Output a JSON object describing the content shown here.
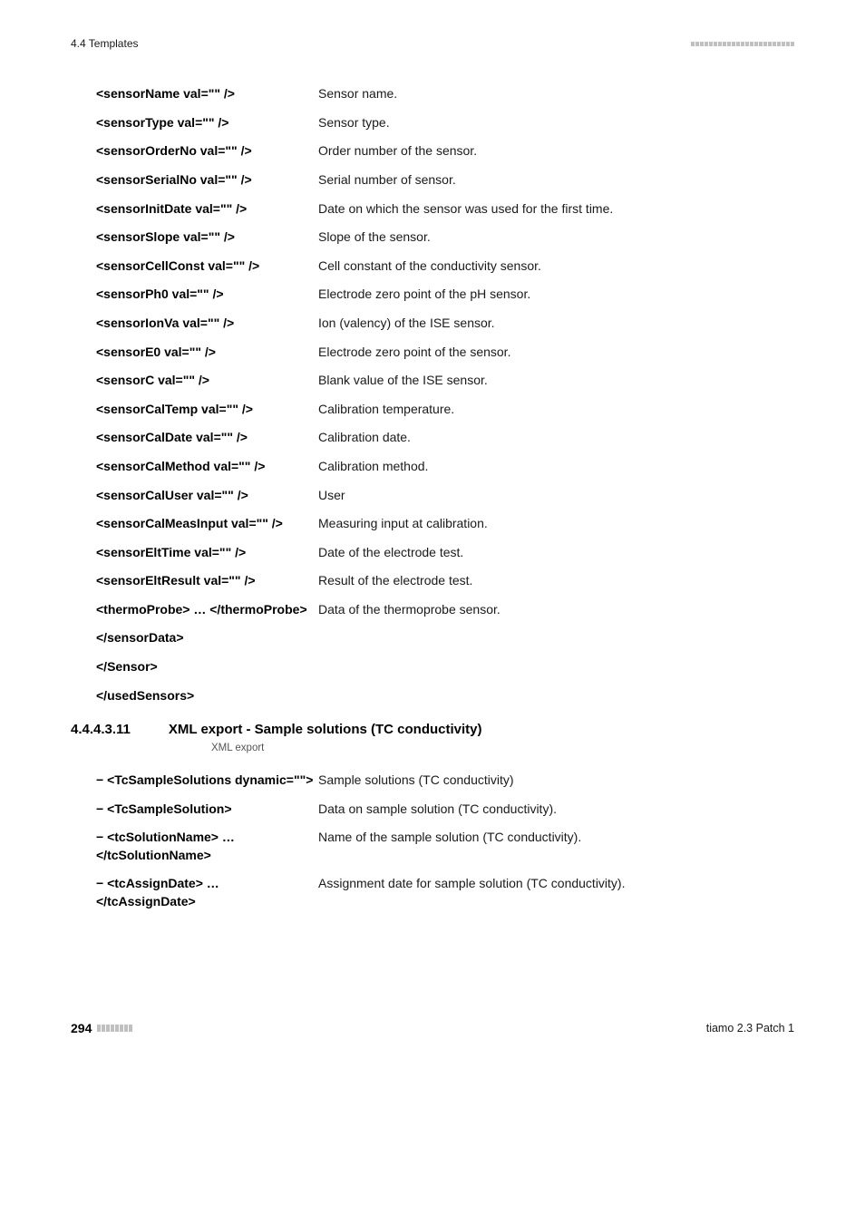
{
  "header": {
    "left": "4.4 Templates"
  },
  "defs": [
    {
      "term": "<sensorName val=\"\" />",
      "desc": "Sensor name."
    },
    {
      "term": "<sensorType val=\"\" />",
      "desc": "Sensor type."
    },
    {
      "term": "<sensorOrderNo val=\"\" />",
      "desc": "Order number of the sensor."
    },
    {
      "term": "<sensorSerialNo val=\"\" />",
      "desc": "Serial number of sensor."
    },
    {
      "term": "<sensorInitDate val=\"\" />",
      "desc": "Date on which the sensor was used for the first time."
    },
    {
      "term": "<sensorSlope val=\"\" />",
      "desc": "Slope of the sensor."
    },
    {
      "term": "<sensorCellConst val=\"\" />",
      "desc": "Cell constant of the conductivity sensor."
    },
    {
      "term": "<sensorPh0 val=\"\" />",
      "desc": "Electrode zero point of the pH sensor."
    },
    {
      "term": "<sensorIonVa val=\"\" />",
      "desc": "Ion (valency) of the ISE sensor."
    },
    {
      "term": "<sensorE0 val=\"\" />",
      "desc": "Electrode zero point of the sensor."
    },
    {
      "term": "<sensorC val=\"\" />",
      "desc": "Blank value of the ISE sensor."
    },
    {
      "term": "<sensorCalTemp val=\"\" />",
      "desc": "Calibration temperature."
    },
    {
      "term": "<sensorCalDate val=\"\" />",
      "desc": "Calibration date."
    },
    {
      "term": "<sensorCalMethod val=\"\" />",
      "desc": "Calibration method."
    },
    {
      "term": "<sensorCalUser val=\"\" />",
      "desc": "User"
    },
    {
      "term": "<sensorCalMeasInput val=\"\" />",
      "desc": "Measuring input at calibration."
    },
    {
      "term": "<sensorEltTime val=\"\" />",
      "desc": "Date of the electrode test."
    },
    {
      "term": "<sensorEltResult val=\"\" />",
      "desc": "Result of the electrode test."
    },
    {
      "term": "<thermoProbe> … </thermoProbe>",
      "desc": "Data of the thermoprobe sensor."
    },
    {
      "term": "</sensorData>",
      "desc": ""
    },
    {
      "term": "</Sensor>",
      "desc": ""
    },
    {
      "term": "</usedSensors>",
      "desc": ""
    }
  ],
  "section": {
    "num": "4.4.4.3.11",
    "title": "XML export - Sample solutions (TC conductivity)",
    "caption": "XML export"
  },
  "defs2": [
    {
      "term": "− <TcSampleSolutions dynamic=\"\">",
      "desc": "Sample solutions (TC conductivity)"
    },
    {
      "term": "− <TcSampleSolution>",
      "desc": "Data on sample solution (TC conductivity)."
    },
    {
      "term": "− <tcSolutionName> … </tcSolutionName>",
      "desc": "Name of the sample solution (TC conductivity)."
    },
    {
      "term": "− <tcAssignDate> … </tcAssignDate>",
      "desc": "Assignment date for sample solution (TC conductivity)."
    }
  ],
  "footer": {
    "pagenum": "294",
    "right": "tiamo 2.3 Patch 1"
  },
  "style": {
    "bar_color": "#c0c0c0",
    "header_bar_heights": [
      5,
      5,
      5,
      5,
      5,
      5,
      5,
      5,
      5,
      5,
      5,
      5,
      5,
      5,
      5,
      5,
      5,
      5,
      5,
      5,
      5,
      5,
      5
    ],
    "footer_bar_heights": [
      8,
      8,
      8,
      8,
      8,
      8,
      8,
      8
    ]
  }
}
